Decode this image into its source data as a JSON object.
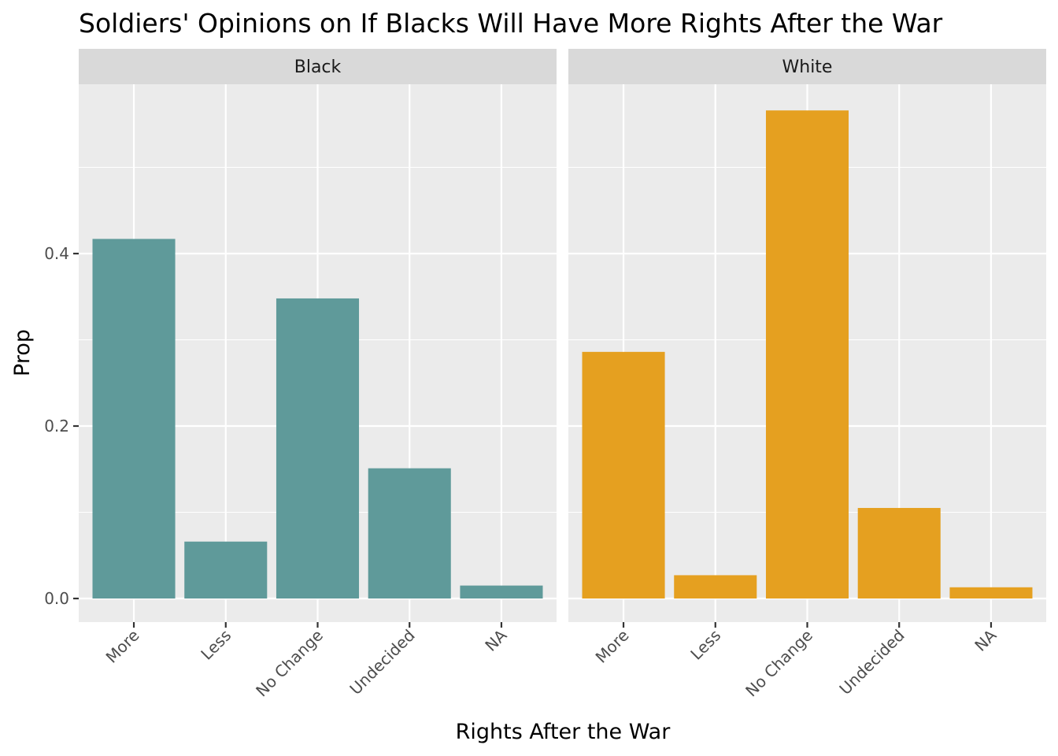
{
  "chart_data": {
    "type": "bar",
    "title": "Soldiers' Opinions on If Blacks Will Have More Rights After the War",
    "xlabel": "Rights After the War",
    "ylabel": "Prop",
    "categories": [
      "More",
      "Less",
      "No Change",
      "Undecided",
      "NA"
    ],
    "y_ticks": [
      0.0,
      0.2,
      0.4
    ],
    "y_tick_labels": [
      "0.0",
      "0.2",
      "0.4"
    ],
    "ylim": [
      -0.0265,
      0.6
    ],
    "grid": true,
    "legend": "none",
    "panels": [
      {
        "label": "Black",
        "color": "#5f9a9a",
        "values": [
          0.417,
          0.066,
          0.348,
          0.151,
          0.015
        ]
      },
      {
        "label": "White",
        "color": "#e5a020",
        "values": [
          0.286,
          0.027,
          0.566,
          0.105,
          0.013
        ]
      }
    ]
  },
  "colors": {
    "panel_background": "#ebebeb",
    "strip_background": "#d9d9d9",
    "grid_major": "#ffffff",
    "grid_minor": "#f5f5f5"
  }
}
